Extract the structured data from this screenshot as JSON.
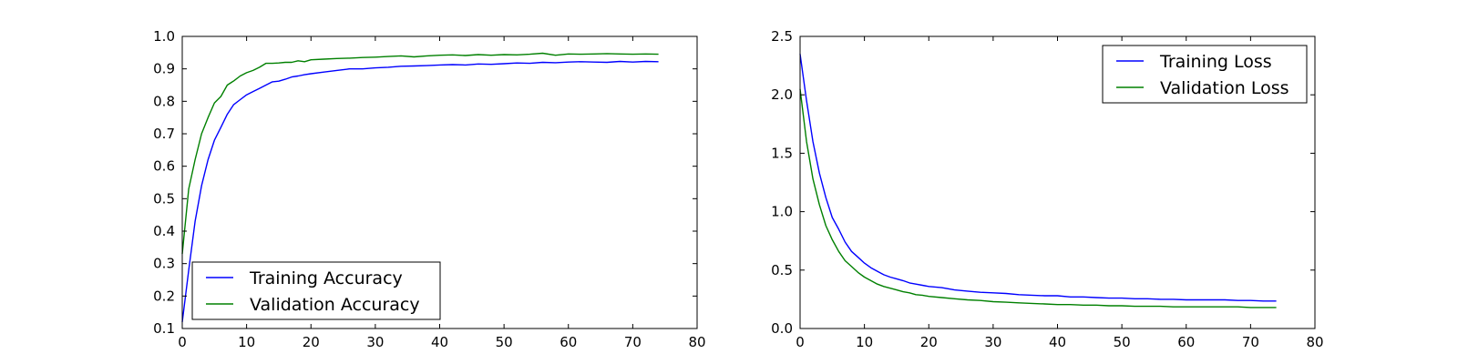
{
  "colors": {
    "training": "#0000ff",
    "validation": "#008000"
  },
  "chart_data": [
    {
      "type": "line",
      "title": "",
      "xlabel": "",
      "ylabel": "",
      "xlim": [
        0,
        80
      ],
      "ylim": [
        0.1,
        1.0
      ],
      "xticks": [
        0,
        10,
        20,
        30,
        40,
        50,
        60,
        70,
        80
      ],
      "yticks": [
        0.1,
        0.2,
        0.3,
        0.4,
        0.5,
        0.6,
        0.7,
        0.8,
        0.9,
        1.0
      ],
      "xtick_labels": [
        "0",
        "10",
        "20",
        "30",
        "40",
        "50",
        "60",
        "70",
        "80"
      ],
      "ytick_labels": [
        "0.1",
        "0.2",
        "0.3",
        "0.4",
        "0.5",
        "0.6",
        "0.7",
        "0.8",
        "0.9",
        "1.0"
      ],
      "grid": false,
      "legend_position": "lower-left",
      "series": [
        {
          "name": "Training Accuracy",
          "color": "#0000ff",
          "x": [
            0,
            1,
            2,
            3,
            4,
            5,
            6,
            7,
            8,
            9,
            10,
            11,
            12,
            13,
            14,
            15,
            16,
            17,
            18,
            19,
            20,
            22,
            24,
            26,
            28,
            30,
            32,
            34,
            36,
            38,
            40,
            42,
            44,
            46,
            48,
            50,
            52,
            54,
            56,
            58,
            60,
            62,
            64,
            66,
            68,
            70,
            72,
            74
          ],
          "y": [
            0.12,
            0.28,
            0.43,
            0.54,
            0.62,
            0.68,
            0.72,
            0.76,
            0.79,
            0.805,
            0.82,
            0.83,
            0.84,
            0.85,
            0.86,
            0.862,
            0.868,
            0.875,
            0.878,
            0.882,
            0.885,
            0.89,
            0.895,
            0.9,
            0.9,
            0.903,
            0.905,
            0.908,
            0.909,
            0.91,
            0.912,
            0.913,
            0.912,
            0.915,
            0.914,
            0.916,
            0.918,
            0.917,
            0.92,
            0.919,
            0.921,
            0.922,
            0.921,
            0.92,
            0.923,
            0.921,
            0.923,
            0.922
          ]
        },
        {
          "name": "Validation Accuracy",
          "color": "#008000",
          "x": [
            0,
            1,
            2,
            3,
            4,
            5,
            6,
            7,
            8,
            9,
            10,
            11,
            12,
            13,
            14,
            15,
            16,
            17,
            18,
            19,
            20,
            22,
            24,
            26,
            28,
            30,
            32,
            34,
            36,
            38,
            40,
            42,
            44,
            46,
            48,
            50,
            52,
            54,
            56,
            58,
            60,
            62,
            64,
            66,
            68,
            70,
            72,
            74
          ],
          "y": [
            0.33,
            0.53,
            0.62,
            0.7,
            0.75,
            0.795,
            0.815,
            0.85,
            0.863,
            0.878,
            0.888,
            0.895,
            0.905,
            0.917,
            0.917,
            0.918,
            0.92,
            0.92,
            0.925,
            0.922,
            0.928,
            0.93,
            0.932,
            0.933,
            0.935,
            0.936,
            0.938,
            0.94,
            0.937,
            0.94,
            0.942,
            0.943,
            0.941,
            0.944,
            0.942,
            0.944,
            0.943,
            0.945,
            0.948,
            0.942,
            0.946,
            0.945,
            0.946,
            0.947,
            0.946,
            0.945,
            0.946,
            0.945
          ]
        }
      ]
    },
    {
      "type": "line",
      "title": "",
      "xlabel": "",
      "ylabel": "",
      "xlim": [
        0,
        80
      ],
      "ylim": [
        0.0,
        2.5
      ],
      "xticks": [
        0,
        10,
        20,
        30,
        40,
        50,
        60,
        70,
        80
      ],
      "yticks": [
        0.0,
        0.5,
        1.0,
        1.5,
        2.0,
        2.5
      ],
      "xtick_labels": [
        "0",
        "10",
        "20",
        "30",
        "40",
        "50",
        "60",
        "70",
        "80"
      ],
      "ytick_labels": [
        "0.0",
        "0.5",
        "1.0",
        "1.5",
        "2.0",
        "2.5"
      ],
      "grid": false,
      "legend_position": "upper-right",
      "series": [
        {
          "name": "Training Loss",
          "color": "#0000ff",
          "x": [
            0,
            1,
            2,
            3,
            4,
            5,
            6,
            7,
            8,
            9,
            10,
            11,
            12,
            13,
            14,
            15,
            16,
            17,
            18,
            19,
            20,
            22,
            24,
            26,
            28,
            30,
            32,
            34,
            36,
            38,
            40,
            42,
            44,
            46,
            48,
            50,
            52,
            54,
            56,
            58,
            60,
            62,
            64,
            66,
            68,
            70,
            72,
            74
          ],
          "y": [
            2.35,
            1.95,
            1.6,
            1.33,
            1.12,
            0.95,
            0.85,
            0.74,
            0.66,
            0.61,
            0.56,
            0.52,
            0.49,
            0.46,
            0.44,
            0.425,
            0.41,
            0.39,
            0.38,
            0.37,
            0.36,
            0.35,
            0.33,
            0.32,
            0.31,
            0.305,
            0.3,
            0.29,
            0.285,
            0.28,
            0.28,
            0.27,
            0.27,
            0.265,
            0.26,
            0.26,
            0.255,
            0.255,
            0.25,
            0.25,
            0.245,
            0.245,
            0.245,
            0.245,
            0.24,
            0.24,
            0.235,
            0.235
          ]
        },
        {
          "name": "Validation Loss",
          "color": "#008000",
          "x": [
            0,
            1,
            2,
            3,
            4,
            5,
            6,
            7,
            8,
            9,
            10,
            11,
            12,
            13,
            14,
            15,
            16,
            17,
            18,
            19,
            20,
            22,
            24,
            26,
            28,
            30,
            32,
            34,
            36,
            38,
            40,
            42,
            44,
            46,
            48,
            50,
            52,
            54,
            56,
            58,
            60,
            62,
            64,
            66,
            68,
            70,
            72,
            74
          ],
          "y": [
            2.05,
            1.6,
            1.28,
            1.06,
            0.88,
            0.76,
            0.66,
            0.58,
            0.53,
            0.48,
            0.44,
            0.41,
            0.38,
            0.36,
            0.345,
            0.33,
            0.315,
            0.305,
            0.29,
            0.285,
            0.275,
            0.265,
            0.255,
            0.245,
            0.24,
            0.23,
            0.225,
            0.22,
            0.215,
            0.21,
            0.205,
            0.205,
            0.2,
            0.2,
            0.195,
            0.195,
            0.19,
            0.19,
            0.19,
            0.185,
            0.185,
            0.185,
            0.185,
            0.185,
            0.185,
            0.18,
            0.18,
            0.18
          ]
        }
      ]
    }
  ]
}
